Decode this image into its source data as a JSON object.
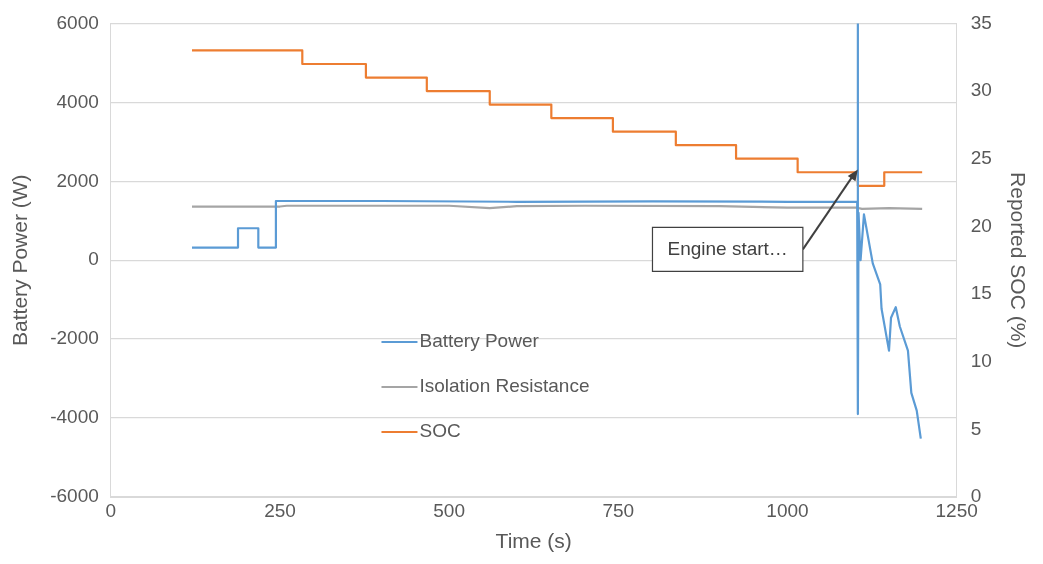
{
  "chart_data": {
    "type": "line",
    "xlabel": "Time (s)",
    "ylabel": "Battery Power (W)",
    "y2label": "Reported SOC (%)",
    "xlim": [
      0,
      1250
    ],
    "xticks": [
      0,
      250,
      500,
      750,
      1000,
      1250
    ],
    "ylim": [
      -6000,
      6000
    ],
    "yticks": [
      -6000,
      -4000,
      -2000,
      0,
      2000,
      4000,
      6000
    ],
    "y2lim": [
      0,
      35
    ],
    "y2ticks": [
      0,
      5,
      10,
      15,
      20,
      25,
      30,
      35
    ],
    "grid": "y",
    "legend": "bottom",
    "annotations": [
      {
        "text": "Engine start…",
        "x": 1104,
        "y": 2300
      }
    ],
    "series": [
      {
        "name": "Battery Power",
        "color": "#5b9bd5",
        "type": "line",
        "x": [
          120,
          188,
          188,
          218,
          218,
          244,
          244,
          400,
          600,
          800,
          1000,
          1103,
          1104,
          1104,
          1105,
          1108,
          1113,
          1126,
          1137,
          1139,
          1150,
          1153,
          1160,
          1166,
          1178,
          1183,
          1191,
          1197
        ],
        "values": [
          320,
          320,
          810,
          810,
          320,
          320,
          1500,
          1500,
          1480,
          1490,
          1480,
          1480,
          6000,
          -3900,
          1200,
          0,
          1160,
          -80,
          -610,
          -1230,
          -2290,
          -1460,
          -1190,
          -1680,
          -2290,
          -3360,
          -3810,
          -4520
        ]
      },
      {
        "name": "Isolation Resistance",
        "color": "#a5a5a5",
        "type": "line",
        "x": [
          120,
          250,
          260,
          500,
          560,
          600,
          700,
          900,
          1000,
          1103,
          1110,
          1150,
          1199
        ],
        "values": [
          1360,
          1360,
          1380,
          1380,
          1320,
          1370,
          1380,
          1370,
          1330,
          1330,
          1300,
          1320,
          1300
        ]
      },
      {
        "name": "SOC",
        "color": "#ed7d31",
        "type": "step",
        "axis": "y2",
        "x": [
          120,
          283,
          377,
          467,
          560,
          651,
          742,
          835,
          924,
          1015,
          1104,
          1143,
          1199
        ],
        "values": [
          33,
          32,
          31,
          30,
          29,
          28,
          27,
          26,
          25,
          24,
          23,
          24,
          24
        ]
      }
    ]
  }
}
